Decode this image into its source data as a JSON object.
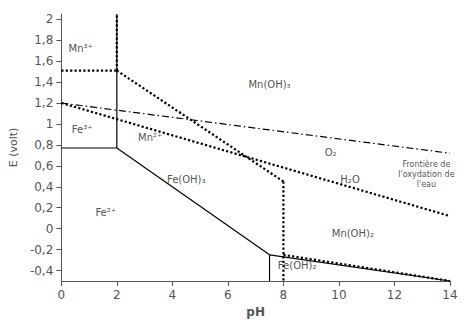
{
  "chart_data": {
    "type": "line",
    "xlabel": "pH",
    "ylabel": "E (volt)",
    "xlim": [
      0,
      14
    ],
    "ylim": [
      -0.5,
      2.05
    ],
    "xticks": [
      0,
      2,
      4,
      6,
      8,
      10,
      12,
      14
    ],
    "yticks": [
      {
        "value": -0.4,
        "label": "-0,4"
      },
      {
        "value": -0.2,
        "label": "-0,2"
      },
      0,
      {
        "value": 0.2,
        "label": "0,2"
      },
      {
        "value": 0.4,
        "label": "0,4"
      },
      {
        "value": 0.6,
        "label": "0,6"
      },
      {
        "value": 0.8,
        "label": "0,8"
      },
      1,
      {
        "value": 1.2,
        "label": "1,2"
      },
      {
        "value": 1.4,
        "label": "1,4"
      },
      {
        "value": 1.6,
        "label": "1,6"
      },
      {
        "value": 1.8,
        "label": "1,8"
      },
      2
    ],
    "grid": false,
    "series": [
      {
        "x": [
          0,
          2
        ],
        "values": [
          0.77,
          0.77
        ],
        "color": "#000000",
        "line_style": "solid"
      },
      {
        "x": [
          2,
          2
        ],
        "values": [
          0.77,
          2.05
        ],
        "color": "#000000",
        "line_style": "solid"
      },
      {
        "x": [
          2,
          7.5
        ],
        "values": [
          0.77,
          -0.25
        ],
        "color": "#000000",
        "line_style": "solid"
      },
      {
        "x": [
          7.5,
          7.5
        ],
        "values": [
          -0.25,
          -0.5
        ],
        "color": "#000000",
        "line_style": "solid"
      },
      {
        "x": [
          7.5,
          14
        ],
        "values": [
          -0.25,
          -0.5
        ],
        "color": "#000000",
        "line_style": "solid"
      },
      {
        "x": [
          0,
          2
        ],
        "values": [
          1.51,
          1.51
        ],
        "color": "#000000",
        "line_style": "dotted"
      },
      {
        "x": [
          2,
          2
        ],
        "values": [
          1.51,
          2.05
        ],
        "color": "#000000",
        "line_style": "dotted"
      },
      {
        "x": [
          2,
          8.0
        ],
        "values": [
          1.51,
          0.45
        ],
        "color": "#000000",
        "line_style": "dotted"
      },
      {
        "x": [
          8.0,
          8.0
        ],
        "values": [
          0.45,
          -0.5
        ],
        "color": "#000000",
        "line_style": "dotted"
      },
      {
        "x": [
          8.0,
          14
        ],
        "values": [
          -0.25,
          -0.5
        ],
        "color": "#000000",
        "line_style": "dotted"
      },
      {
        "x": [
          0,
          14
        ],
        "values": [
          1.2,
          0.72
        ],
        "color": "#000000",
        "line_style": "dashdot"
      },
      {
        "x": [
          0,
          14
        ],
        "values": [
          1.2,
          0.12
        ],
        "color": "#000000",
        "line_style": "dotted"
      }
    ],
    "annotations": [
      {
        "text": "Mn³⁺",
        "x": 0.7,
        "y": 1.72,
        "align": "center"
      },
      {
        "text": "Mn(OH)₃",
        "x": 7.5,
        "y": 1.38,
        "align": "center"
      },
      {
        "text": "Fe³⁺",
        "x": 0.75,
        "y": 0.95,
        "align": "center"
      },
      {
        "text": "Mn²⁺",
        "x": 3.2,
        "y": 0.87,
        "align": "center"
      },
      {
        "text": "Fe(OH)₃",
        "x": 4.5,
        "y": 0.47,
        "align": "center"
      },
      {
        "text": "Fe²⁺",
        "x": 1.6,
        "y": 0.15,
        "align": "center"
      },
      {
        "text": "Fe(OH)₂",
        "x": 7.8,
        "y": -0.35,
        "align": "left"
      },
      {
        "text": "Mn(OH)₂",
        "x": 10.5,
        "y": -0.05,
        "align": "center"
      },
      {
        "text": "O₂",
        "x": 9.7,
        "y": 0.73,
        "align": "center"
      },
      {
        "text": "H₂O",
        "x": 10.4,
        "y": 0.47,
        "align": "center"
      },
      {
        "text": "Frontière de\nl'oxydation de\nl'eau",
        "x": 13.15,
        "y": 0.52,
        "align": "center"
      }
    ]
  }
}
